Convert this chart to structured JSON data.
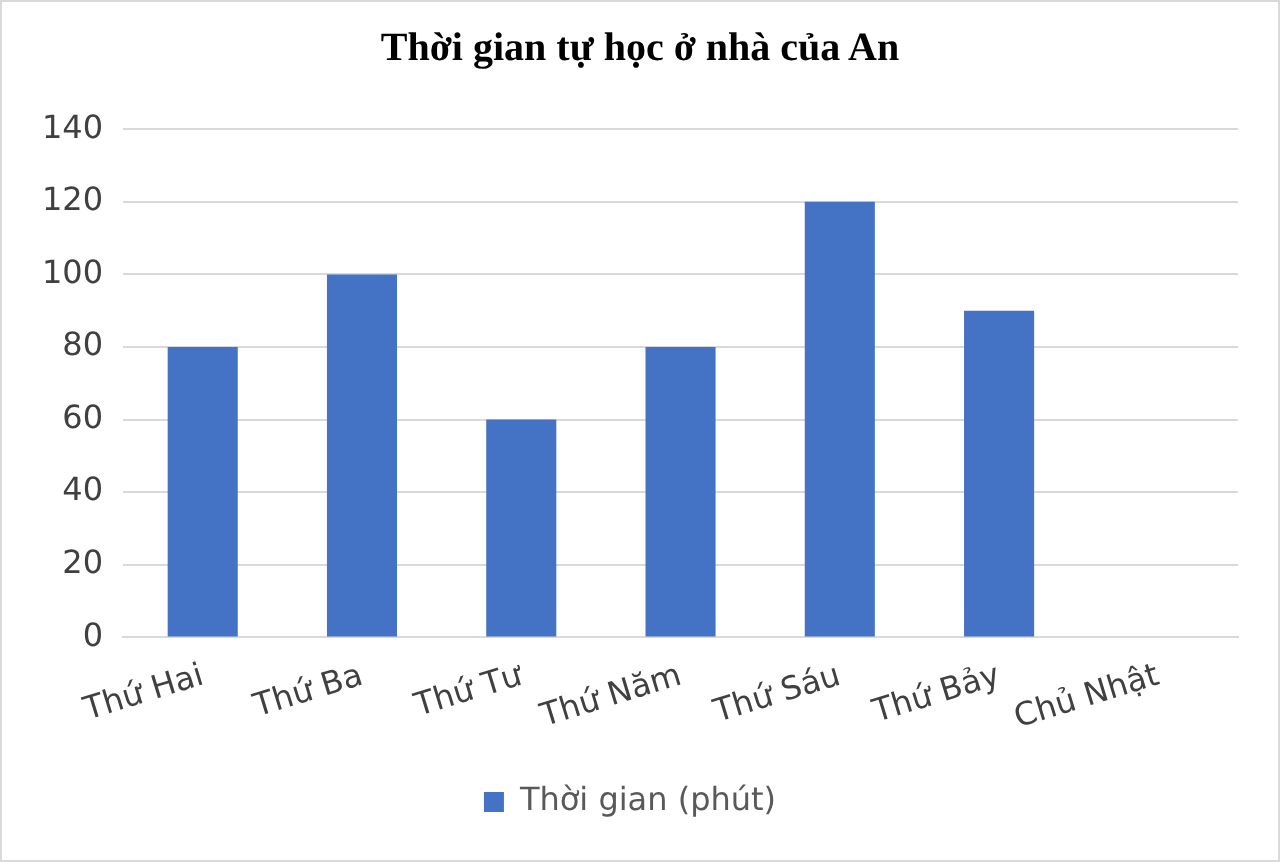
{
  "chart_data": {
    "type": "bar",
    "title": "Thời gian tự học ở nhà của An",
    "categories": [
      "Thứ Hai",
      "Thứ Ba",
      "Thứ Tư",
      "Thứ Năm",
      "Thứ Sáu",
      "Thứ Bảy",
      "Chủ Nhật"
    ],
    "series": [
      {
        "name": "Thời gian (phút)",
        "color": "#4472c4",
        "values": [
          80,
          100,
          60,
          80,
          120,
          90,
          0
        ]
      }
    ],
    "ylim": [
      0,
      140
    ],
    "yticks": [
      0,
      20,
      40,
      60,
      80,
      100,
      120,
      140
    ],
    "grid": "y",
    "legend": "bottom"
  }
}
